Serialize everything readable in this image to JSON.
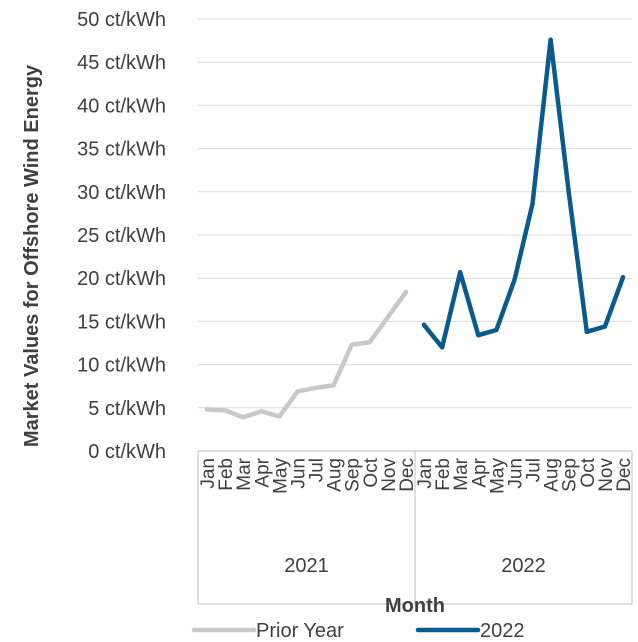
{
  "chart_data": {
    "type": "line",
    "ylabel": "Market Values for Offshore Wind Energy",
    "xlabel": "Month",
    "ylim": [
      0,
      50
    ],
    "y_ticks": [
      "0 ct/kWh",
      "5 ct/kWh",
      "10 ct/kWh",
      "15 ct/kWh",
      "20 ct/kWh",
      "25 ct/kWh",
      "30 ct/kWh",
      "35 ct/kWh",
      "40 ct/kWh",
      "45 ct/kWh",
      "50 ct/kWh"
    ],
    "grid": true,
    "legend_position": "bottom",
    "groups": [
      {
        "label": "2021",
        "months": [
          "Jan",
          "Feb",
          "Mar",
          "Apr",
          "May",
          "Jun",
          "Jul",
          "Aug",
          "Sep",
          "Oct",
          "Nov",
          "Dec"
        ]
      },
      {
        "label": "2022",
        "months": [
          "Jan",
          "Feb",
          "Mar",
          "Apr",
          "May",
          "Jun",
          "Jul",
          "Aug",
          "Sep",
          "Oct",
          "Nov",
          "Dec"
        ]
      }
    ],
    "series": [
      {
        "name": "Prior Year",
        "color": "#c8c8c8",
        "group": 0,
        "values": [
          4.8,
          4.7,
          3.9,
          4.6,
          4.0,
          6.9,
          7.3,
          7.6,
          12.3,
          12.6,
          15.5,
          18.4
        ]
      },
      {
        "name": "2022",
        "color": "#0b5a8f",
        "group": 1,
        "values": [
          14.6,
          12.0,
          20.7,
          13.4,
          14.0,
          19.8,
          28.6,
          47.6,
          30.0,
          13.8,
          14.4,
          20.1
        ]
      }
    ]
  }
}
